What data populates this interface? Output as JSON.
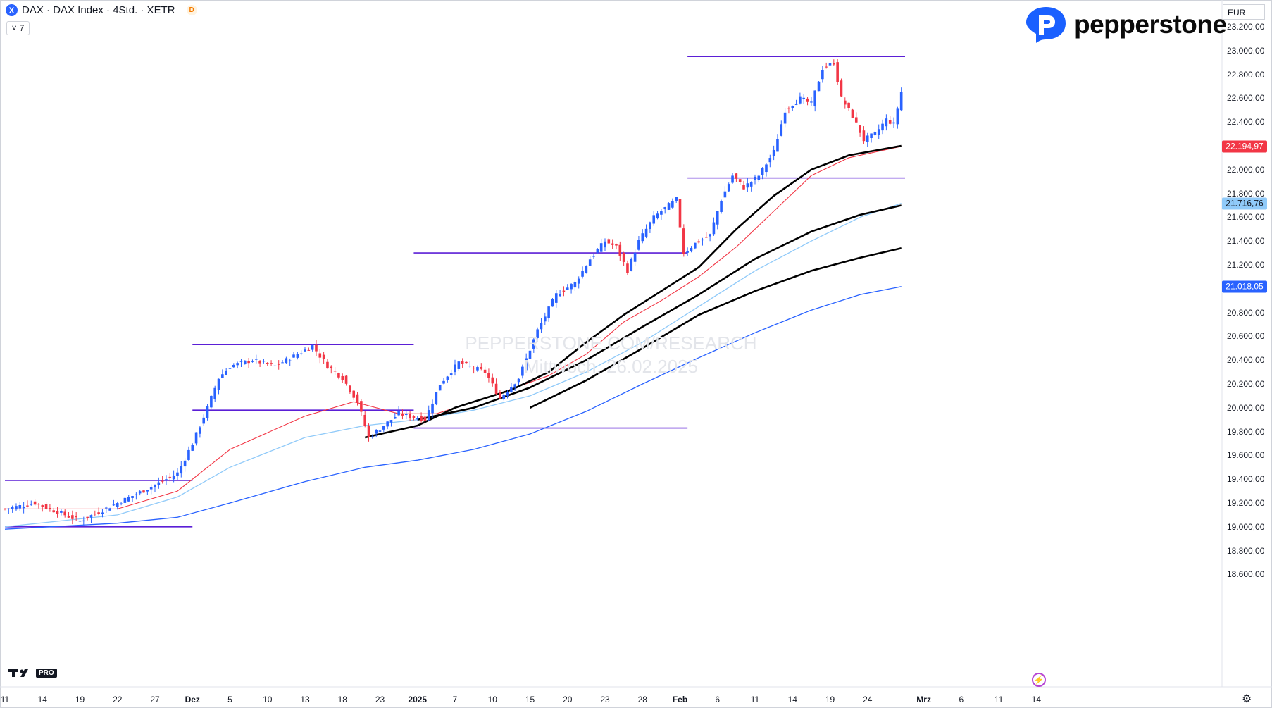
{
  "header": {
    "symbol_icon": "X",
    "title": "DAX · DAX Index · 4Std. · XETR",
    "d_badge": "D",
    "indicators_count": "7",
    "chevron": "˅"
  },
  "brand": {
    "name": "pepperstone",
    "color": "#1a60ff"
  },
  "currency": "EUR",
  "watermark": {
    "line1": "PEPPERSTONE.COM/RESEARCH",
    "line2": "Mittwoch, 26.02.2025"
  },
  "tradingview": {
    "pro_label": "PRO"
  },
  "colors": {
    "up": "#2962ff",
    "down": "#f23645",
    "hline": "#5b1fd6",
    "ema_red": "#f23645",
    "ema_light": "#90caf9",
    "ema_blue": "#2962ff",
    "ema_black": "#000000"
  },
  "chart_data": {
    "type": "candlestick",
    "title": "DAX · DAX Index · 4Std. · XETR",
    "currency": "EUR",
    "ylim": [
      18500,
      23300
    ],
    "y_ticks": [
      "23.200,00",
      "23.000,00",
      "22.800,00",
      "22.600,00",
      "22.400,00",
      "22.200,00",
      "22.000,00",
      "21.800,00",
      "21.600,00",
      "21.400,00",
      "21.200,00",
      "21.000,00",
      "20.800,00",
      "20.600,00",
      "20.400,00",
      "20.200,00",
      "20.000,00",
      "19.800,00",
      "19.600,00",
      "19.400,00",
      "19.200,00",
      "19.000,00",
      "18.800,00",
      "18.600,00"
    ],
    "y_tick_values": [
      23200,
      23000,
      22800,
      22600,
      22400,
      22200,
      22000,
      21800,
      21600,
      21400,
      21200,
      21000,
      20800,
      20600,
      20400,
      20200,
      20000,
      19800,
      19600,
      19400,
      19200,
      19000,
      18800,
      18600
    ],
    "x_ticks": [
      "11",
      "14",
      "19",
      "22",
      "27",
      "Dez",
      "5",
      "10",
      "13",
      "18",
      "23",
      "2025",
      "7",
      "10",
      "15",
      "20",
      "23",
      "28",
      "Feb",
      "6",
      "11",
      "14",
      "19",
      "24",
      "Mrz",
      "6",
      "11",
      "14"
    ],
    "x_tick_bars": [
      0,
      10,
      20,
      30,
      40,
      50,
      60,
      70,
      80,
      90,
      100,
      110,
      120,
      130,
      140,
      150,
      160,
      170,
      180,
      190,
      200,
      210,
      220,
      230,
      245,
      255,
      265,
      275
    ],
    "price_labels": [
      {
        "value": 22194.97,
        "text": "22.194,97",
        "color": "#f23645"
      },
      {
        "value": 21716.76,
        "text": "21.716,76",
        "color": "#90caf9"
      },
      {
        "value": 21018.05,
        "text": "21.018,05",
        "color": "#2962ff"
      }
    ],
    "key_points": [
      {
        "bar": 0,
        "close": 19150
      },
      {
        "bar": 8,
        "close": 19200
      },
      {
        "bar": 20,
        "close": 19050
      },
      {
        "bar": 30,
        "close": 19200
      },
      {
        "bar": 40,
        "close": 19350
      },
      {
        "bar": 46,
        "close": 19450
      },
      {
        "bar": 50,
        "close": 19700
      },
      {
        "bar": 54,
        "close": 20000
      },
      {
        "bar": 57,
        "close": 20250
      },
      {
        "bar": 60,
        "close": 20350
      },
      {
        "bar": 66,
        "close": 20400
      },
      {
        "bar": 72,
        "close": 20350
      },
      {
        "bar": 78,
        "close": 20450
      },
      {
        "bar": 82,
        "close": 20520
      },
      {
        "bar": 86,
        "close": 20350
      },
      {
        "bar": 90,
        "close": 20250
      },
      {
        "bar": 94,
        "close": 20050
      },
      {
        "bar": 97,
        "close": 19750
      },
      {
        "bar": 101,
        "close": 19850
      },
      {
        "bar": 105,
        "close": 19950
      },
      {
        "bar": 112,
        "close": 19900
      },
      {
        "bar": 116,
        "close": 20200
      },
      {
        "bar": 121,
        "close": 20380
      },
      {
        "bar": 128,
        "close": 20300
      },
      {
        "bar": 132,
        "close": 20080
      },
      {
        "bar": 137,
        "close": 20250
      },
      {
        "bar": 142,
        "close": 20650
      },
      {
        "bar": 147,
        "close": 20950
      },
      {
        "bar": 152,
        "close": 21050
      },
      {
        "bar": 156,
        "close": 21250
      },
      {
        "bar": 160,
        "close": 21400
      },
      {
        "bar": 163,
        "close": 21350
      },
      {
        "bar": 166,
        "close": 21150
      },
      {
        "bar": 169,
        "close": 21400
      },
      {
        "bar": 173,
        "close": 21600
      },
      {
        "bar": 177,
        "close": 21700
      },
      {
        "bar": 179,
        "close": 21750
      },
      {
        "bar": 181,
        "close": 21300
      },
      {
        "bar": 184,
        "close": 21380
      },
      {
        "bar": 188,
        "close": 21450
      },
      {
        "bar": 191,
        "close": 21750
      },
      {
        "bar": 194,
        "close": 21950
      },
      {
        "bar": 197,
        "close": 21850
      },
      {
        "bar": 201,
        "close": 21950
      },
      {
        "bar": 205,
        "close": 22150
      },
      {
        "bar": 208,
        "close": 22500
      },
      {
        "bar": 212,
        "close": 22600
      },
      {
        "bar": 215,
        "close": 22550
      },
      {
        "bar": 218,
        "close": 22850
      },
      {
        "bar": 221,
        "close": 22900
      },
      {
        "bar": 223,
        "close": 22600
      },
      {
        "bar": 226,
        "close": 22450
      },
      {
        "bar": 229,
        "close": 22250
      },
      {
        "bar": 232,
        "close": 22300
      },
      {
        "bar": 235,
        "close": 22420
      },
      {
        "bar": 237,
        "close": 22380
      },
      {
        "bar": 239,
        "close": 22650
      }
    ],
    "ema_red": [
      [
        0,
        19150
      ],
      [
        20,
        19150
      ],
      [
        30,
        19150
      ],
      [
        46,
        19300
      ],
      [
        60,
        19650
      ],
      [
        80,
        19930
      ],
      [
        93,
        20050
      ],
      [
        105,
        19950
      ],
      [
        115,
        19950
      ],
      [
        130,
        20100
      ],
      [
        145,
        20270
      ],
      [
        155,
        20450
      ],
      [
        165,
        20720
      ],
      [
        175,
        20900
      ],
      [
        185,
        21100
      ],
      [
        195,
        21350
      ],
      [
        205,
        21650
      ],
      [
        215,
        21950
      ],
      [
        225,
        22100
      ],
      [
        239,
        22195
      ]
    ],
    "ema_black_fast": [
      [
        96,
        19750
      ],
      [
        110,
        19850
      ],
      [
        120,
        20000
      ],
      [
        135,
        20150
      ],
      [
        145,
        20300
      ],
      [
        155,
        20550
      ],
      [
        165,
        20780
      ],
      [
        175,
        20980
      ],
      [
        185,
        21180
      ],
      [
        195,
        21500
      ],
      [
        205,
        21780
      ],
      [
        215,
        22000
      ],
      [
        225,
        22120
      ],
      [
        239,
        22200
      ]
    ],
    "ema_light": [
      [
        0,
        19000
      ],
      [
        30,
        19100
      ],
      [
        46,
        19250
      ],
      [
        60,
        19500
      ],
      [
        80,
        19750
      ],
      [
        96,
        19850
      ],
      [
        110,
        19900
      ],
      [
        125,
        19980
      ],
      [
        140,
        20100
      ],
      [
        155,
        20300
      ],
      [
        170,
        20550
      ],
      [
        185,
        20850
      ],
      [
        200,
        21150
      ],
      [
        215,
        21400
      ],
      [
        228,
        21600
      ],
      [
        239,
        21717
      ]
    ],
    "ema_black_mid": [
      [
        110,
        19900
      ],
      [
        125,
        20000
      ],
      [
        140,
        20170
      ],
      [
        155,
        20400
      ],
      [
        170,
        20680
      ],
      [
        185,
        20950
      ],
      [
        200,
        21250
      ],
      [
        215,
        21480
      ],
      [
        228,
        21620
      ],
      [
        239,
        21700
      ]
    ],
    "ema_black_slow": [
      [
        140,
        20000
      ],
      [
        155,
        20230
      ],
      [
        170,
        20500
      ],
      [
        185,
        20780
      ],
      [
        200,
        20980
      ],
      [
        215,
        21150
      ],
      [
        228,
        21260
      ],
      [
        239,
        21340
      ]
    ],
    "ema_blue": [
      [
        0,
        18980
      ],
      [
        30,
        19030
      ],
      [
        46,
        19080
      ],
      [
        60,
        19200
      ],
      [
        80,
        19380
      ],
      [
        96,
        19500
      ],
      [
        110,
        19560
      ],
      [
        125,
        19650
      ],
      [
        140,
        19780
      ],
      [
        155,
        19970
      ],
      [
        170,
        20200
      ],
      [
        185,
        20420
      ],
      [
        200,
        20630
      ],
      [
        215,
        20820
      ],
      [
        228,
        20950
      ],
      [
        239,
        21018
      ]
    ],
    "support_resistance_lines": [
      {
        "from_bar": 0,
        "to_bar": 50,
        "value": 19390
      },
      {
        "from_bar": 0,
        "to_bar": 50,
        "value": 19000
      },
      {
        "from_bar": 50,
        "to_bar": 109,
        "value": 20530
      },
      {
        "from_bar": 50,
        "to_bar": 109,
        "value": 19980
      },
      {
        "from_bar": 109,
        "to_bar": 182,
        "value": 21300
      },
      {
        "from_bar": 109,
        "to_bar": 182,
        "value": 19830
      },
      {
        "from_bar": 182,
        "to_bar": 240,
        "value": 22950
      },
      {
        "from_bar": 182,
        "to_bar": 240,
        "value": 21930
      }
    ]
  }
}
